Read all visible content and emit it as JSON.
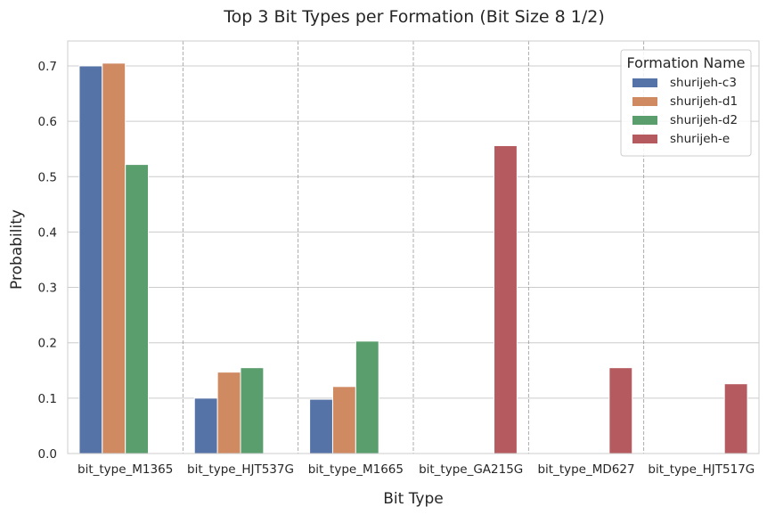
{
  "chart_data": {
    "type": "bar",
    "title": "Top 3 Bit Types per Formation (Bit Size 8 1/2)",
    "xlabel": "Bit Type",
    "ylabel": "Probability",
    "ylim": [
      0,
      0.745
    ],
    "yticks": [
      "0.0",
      "0.1",
      "0.2",
      "0.3",
      "0.4",
      "0.5",
      "0.6",
      "0.7"
    ],
    "ytick_values": [
      0,
      0.1,
      0.2,
      0.3,
      0.4,
      0.5,
      0.6,
      0.7
    ],
    "grid": true,
    "legend_title": "Formation Name",
    "legend_position": "top-right",
    "categories": [
      "bit_type_M1365",
      "bit_type_HJT537G",
      "bit_type_M1665",
      "bit_type_GA215G",
      "bit_type_MD627",
      "bit_type_HJT517G"
    ],
    "series": [
      {
        "name": "shurijeh-c3",
        "color": "#5573a6",
        "values": [
          0.7,
          0.1,
          0.098,
          null,
          null,
          null
        ]
      },
      {
        "name": "shurijeh-d1",
        "color": "#cf8a62",
        "values": [
          0.705,
          0.147,
          0.121,
          null,
          null,
          null
        ]
      },
      {
        "name": "shurijeh-d2",
        "color": "#5b9e6e",
        "values": [
          0.522,
          0.155,
          0.203,
          null,
          null,
          null
        ]
      },
      {
        "name": "shurijeh-e",
        "color": "#b55b60",
        "values": [
          null,
          null,
          null,
          0.556,
          0.155,
          0.126
        ]
      }
    ]
  }
}
